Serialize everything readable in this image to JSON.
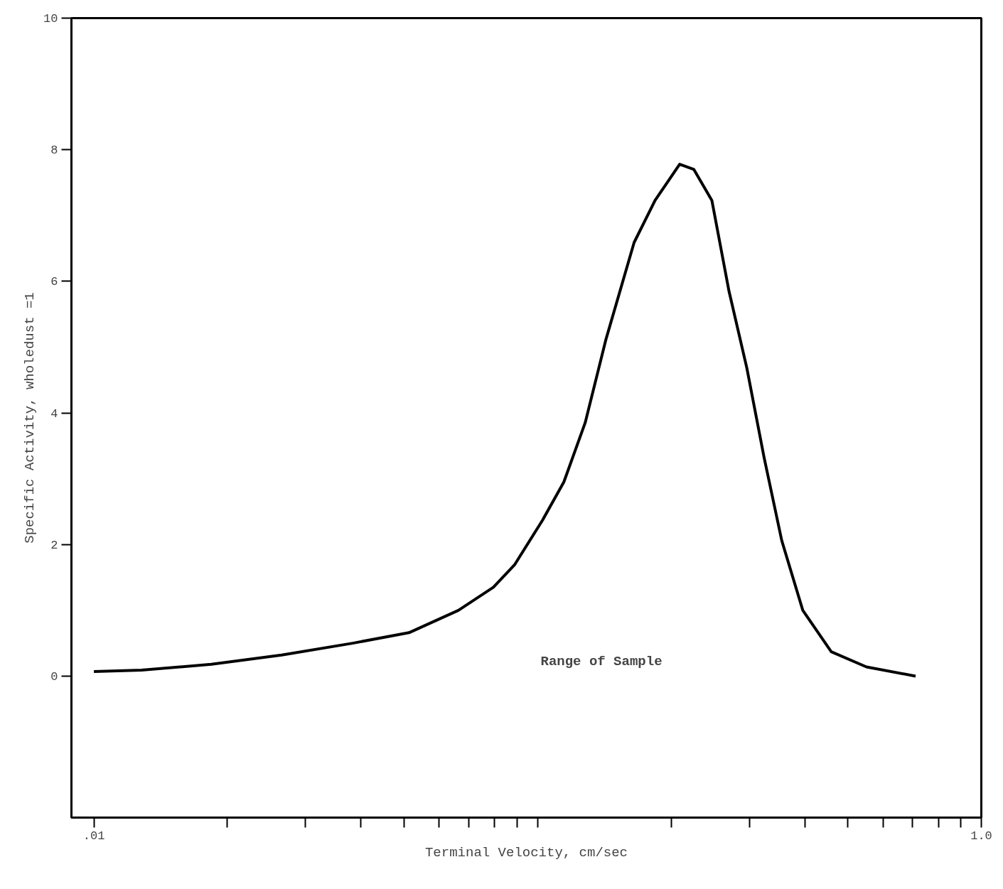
{
  "chart_data": {
    "type": "line",
    "xlabel": "Terminal Velocity, cm/sec",
    "ylabel": "Specific Activity, wholedust =1",
    "log": "x",
    "line_style": "solid",
    "xlim": [
      0.0089,
      1.0
    ],
    "ylim": [
      -2.15,
      10
    ],
    "xticks": [
      {
        "value": 0.01,
        "label": ".01"
      },
      {
        "value": 0.02,
        "label": null
      },
      {
        "value": 0.03,
        "label": null
      },
      {
        "value": 0.04,
        "label": null
      },
      {
        "value": 0.05,
        "label": null
      },
      {
        "value": 0.06,
        "label": null
      },
      {
        "value": 0.07,
        "label": null
      },
      {
        "value": 0.08,
        "label": null
      },
      {
        "value": 0.09,
        "label": null
      },
      {
        "value": 0.1,
        "label": null
      },
      {
        "value": 0.2,
        "label": null
      },
      {
        "value": 0.3,
        "label": null
      },
      {
        "value": 0.4,
        "label": null
      },
      {
        "value": 0.5,
        "label": null
      },
      {
        "value": 0.6,
        "label": null
      },
      {
        "value": 0.7,
        "label": null
      },
      {
        "value": 0.8,
        "label": null
      },
      {
        "value": 0.9,
        "label": null
      },
      {
        "value": 1.0,
        "label": "1.0"
      }
    ],
    "yticks": [
      0,
      2,
      4,
      6,
      8,
      10
    ],
    "annotations": [
      "Range of Sample"
    ],
    "series": [
      {
        "color": "#000000",
        "x": [
          0.01,
          0.0128,
          0.0184,
          0.0265,
          0.0383,
          0.0513,
          0.0663,
          0.0795,
          0.0887,
          0.1026,
          0.1146,
          0.128,
          0.1426,
          0.165,
          0.184,
          0.209,
          0.225,
          0.247,
          0.27,
          0.296,
          0.324,
          0.355,
          0.396,
          0.459,
          0.551,
          0.711
        ],
        "values": [
          0.07,
          0.09,
          0.18,
          0.32,
          0.5,
          0.66,
          1.0,
          1.35,
          1.69,
          2.37,
          2.95,
          3.85,
          5.12,
          6.59,
          7.23,
          7.78,
          7.7,
          7.23,
          5.85,
          4.69,
          3.32,
          2.06,
          1.0,
          0.37,
          0.14,
          0.0
        ]
      }
    ]
  }
}
